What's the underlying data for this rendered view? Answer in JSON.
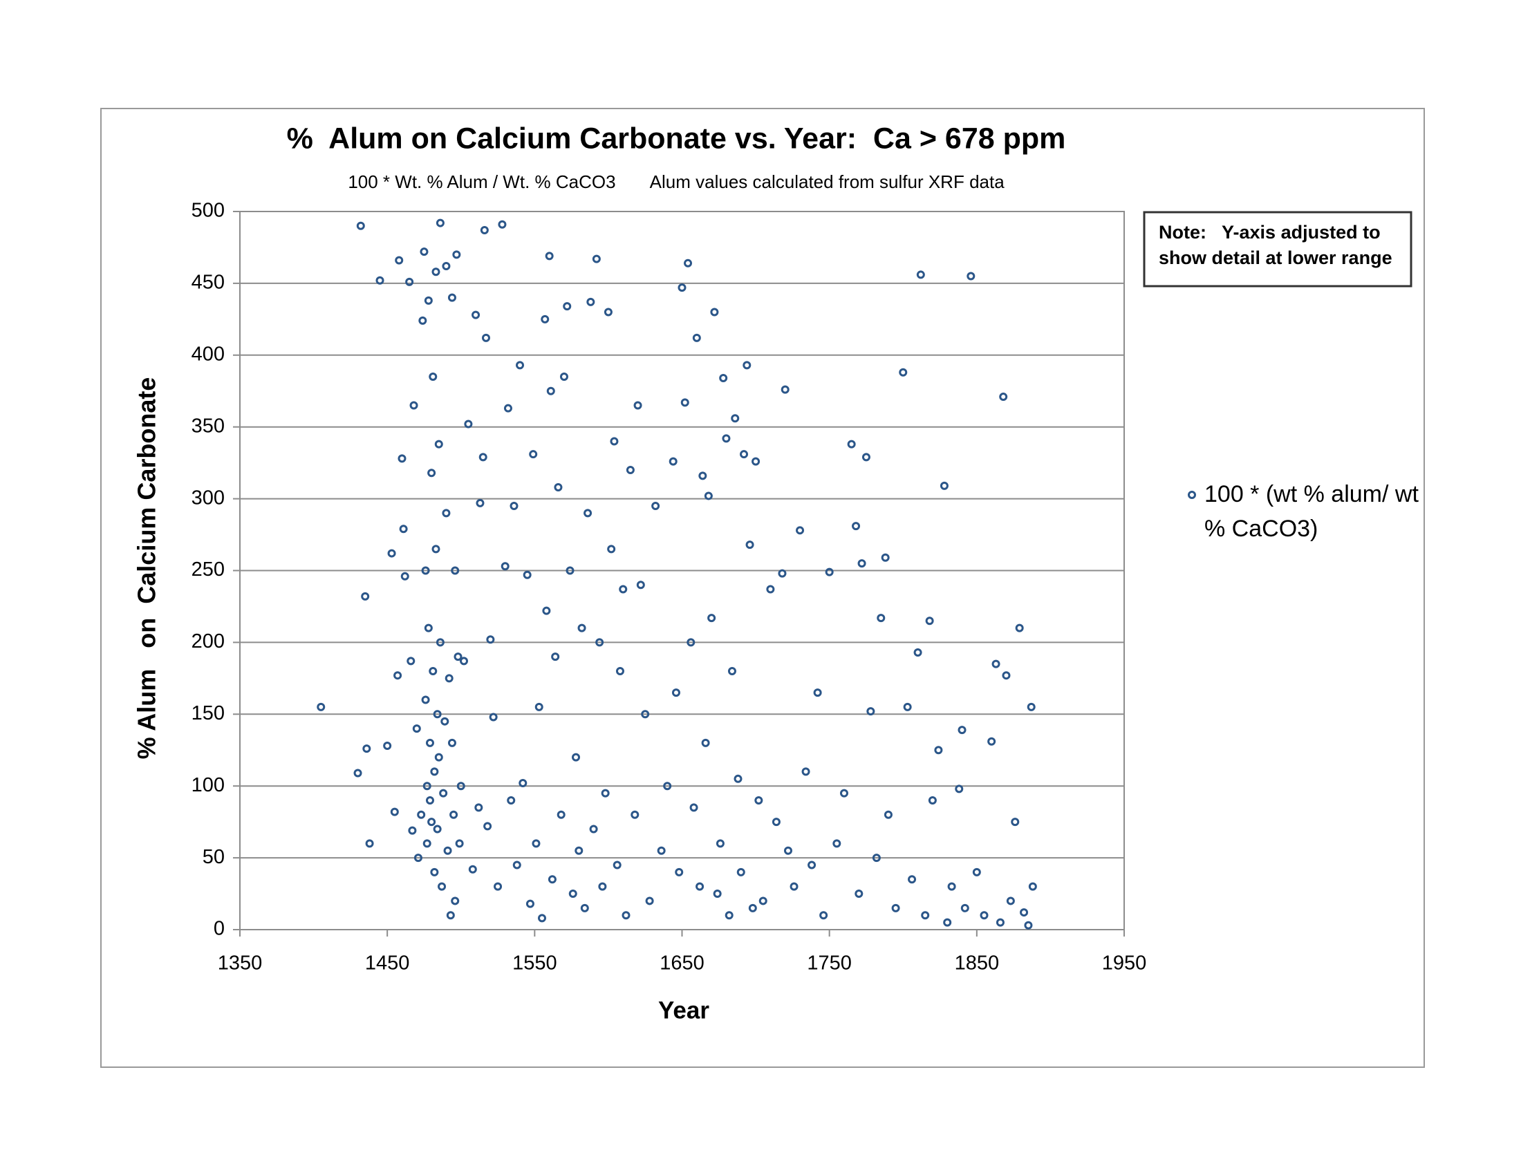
{
  "chart_data": {
    "type": "scatter",
    "title": "%  Alum on Calcium Carbonate vs. Year:  Ca > 678 ppm",
    "subtitle": "100 * Wt. % Alum / Wt. % CaCO3       Alum values calculated from sulfur XRF data",
    "x_label": "Year",
    "y_label": "% Alum   on  Calcium Carbonate",
    "annotations": [
      "Note:   Y-axis adjusted to",
      "show detail at lower range"
    ],
    "xlim": [
      1350,
      1950
    ],
    "xticks": [
      1350,
      1450,
      1550,
      1650,
      1750,
      1850,
      1950
    ],
    "ylim": [
      0,
      500
    ],
    "yticks": [
      0,
      50,
      100,
      150,
      200,
      250,
      300,
      350,
      400,
      450,
      500
    ],
    "grid": true,
    "legend": "right",
    "series": [
      {
        "name": "100 * (wt % alum/ wt % CaCO3)",
        "color": "#2b5689",
        "x": [
          1405,
          1430,
          1432,
          1435,
          1436,
          1438,
          1445,
          1450,
          1453,
          1455,
          1457,
          1458,
          1460,
          1461,
          1462,
          1465,
          1466,
          1467,
          1468,
          1470,
          1471,
          1473,
          1474,
          1475,
          1476,
          1476,
          1477,
          1477,
          1478,
          1478,
          1479,
          1479,
          1480,
          1480,
          1481,
          1481,
          1482,
          1482,
          1483,
          1483,
          1484,
          1484,
          1485,
          1485,
          1486,
          1486,
          1487,
          1488,
          1489,
          1490,
          1490,
          1491,
          1492,
          1493,
          1494,
          1494,
          1495,
          1496,
          1496,
          1497,
          1498,
          1499,
          1500,
          1502,
          1505,
          1508,
          1510,
          1512,
          1513,
          1515,
          1516,
          1517,
          1518,
          1520,
          1522,
          1525,
          1528,
          1530,
          1532,
          1534,
          1536,
          1538,
          1540,
          1542,
          1545,
          1547,
          1549,
          1551,
          1553,
          1555,
          1557,
          1558,
          1560,
          1561,
          1562,
          1564,
          1566,
          1568,
          1570,
          1572,
          1574,
          1576,
          1578,
          1580,
          1582,
          1584,
          1586,
          1588,
          1590,
          1592,
          1594,
          1596,
          1598,
          1600,
          1602,
          1604,
          1606,
          1608,
          1610,
          1612,
          1615,
          1618,
          1620,
          1622,
          1625,
          1628,
          1632,
          1636,
          1640,
          1644,
          1646,
          1648,
          1650,
          1652,
          1654,
          1656,
          1658,
          1660,
          1662,
          1664,
          1666,
          1668,
          1670,
          1672,
          1674,
          1676,
          1678,
          1680,
          1682,
          1684,
          1686,
          1688,
          1690,
          1692,
          1694,
          1696,
          1698,
          1700,
          1702,
          1705,
          1710,
          1714,
          1718,
          1720,
          1722,
          1726,
          1730,
          1734,
          1738,
          1742,
          1746,
          1750,
          1755,
          1760,
          1765,
          1768,
          1770,
          1772,
          1775,
          1778,
          1782,
          1785,
          1788,
          1790,
          1795,
          1800,
          1803,
          1806,
          1810,
          1812,
          1815,
          1818,
          1820,
          1824,
          1828,
          1830,
          1833,
          1838,
          1840,
          1842,
          1846,
          1850,
          1855,
          1860,
          1863,
          1866,
          1868,
          1870,
          1873,
          1876,
          1879,
          1882,
          1885,
          1887,
          1888
        ],
        "values": [
          155,
          109,
          490,
          232,
          126,
          60,
          452,
          128,
          262,
          82,
          177,
          466,
          328,
          279,
          246,
          451,
          187,
          69,
          365,
          140,
          50,
          80,
          424,
          472,
          250,
          160,
          100,
          60,
          438,
          210,
          130,
          90,
          318,
          75,
          385,
          180,
          110,
          40,
          458,
          265,
          150,
          70,
          338,
          120,
          492,
          200,
          30,
          95,
          145,
          462,
          290,
          55,
          175,
          10,
          440,
          130,
          80,
          250,
          20,
          470,
          190,
          60,
          100,
          187,
          352,
          42,
          428,
          85,
          297,
          329,
          487,
          412,
          72,
          202,
          148,
          30,
          491,
          253,
          363,
          90,
          295,
          45,
          393,
          102,
          247,
          18,
          331,
          60,
          155,
          8,
          425,
          222,
          469,
          375,
          35,
          190,
          308,
          80,
          385,
          434,
          250,
          25,
          120,
          55,
          210,
          15,
          290,
          437,
          70,
          467,
          200,
          30,
          95,
          430,
          265,
          340,
          45,
          180,
          237,
          10,
          320,
          80,
          365,
          240,
          150,
          20,
          295,
          55,
          100,
          326,
          165,
          40,
          447,
          367,
          464,
          200,
          85,
          412,
          30,
          316,
          130,
          302,
          217,
          430,
          25,
          60,
          384,
          342,
          10,
          180,
          356,
          105,
          40,
          331,
          393,
          268,
          15,
          326,
          90,
          20,
          237,
          75,
          248,
          376,
          55,
          30,
          278,
          110,
          45,
          165,
          10,
          249,
          60,
          95,
          338,
          281,
          25,
          255,
          329,
          152,
          50,
          217,
          259,
          80,
          15,
          388,
          155,
          35,
          193,
          456,
          10,
          215,
          90,
          125,
          309,
          5,
          30,
          98,
          139,
          15,
          455,
          40,
          10,
          131,
          185,
          5,
          371,
          177,
          20,
          75,
          210,
          12,
          3,
          155,
          30
        ]
      }
    ]
  }
}
